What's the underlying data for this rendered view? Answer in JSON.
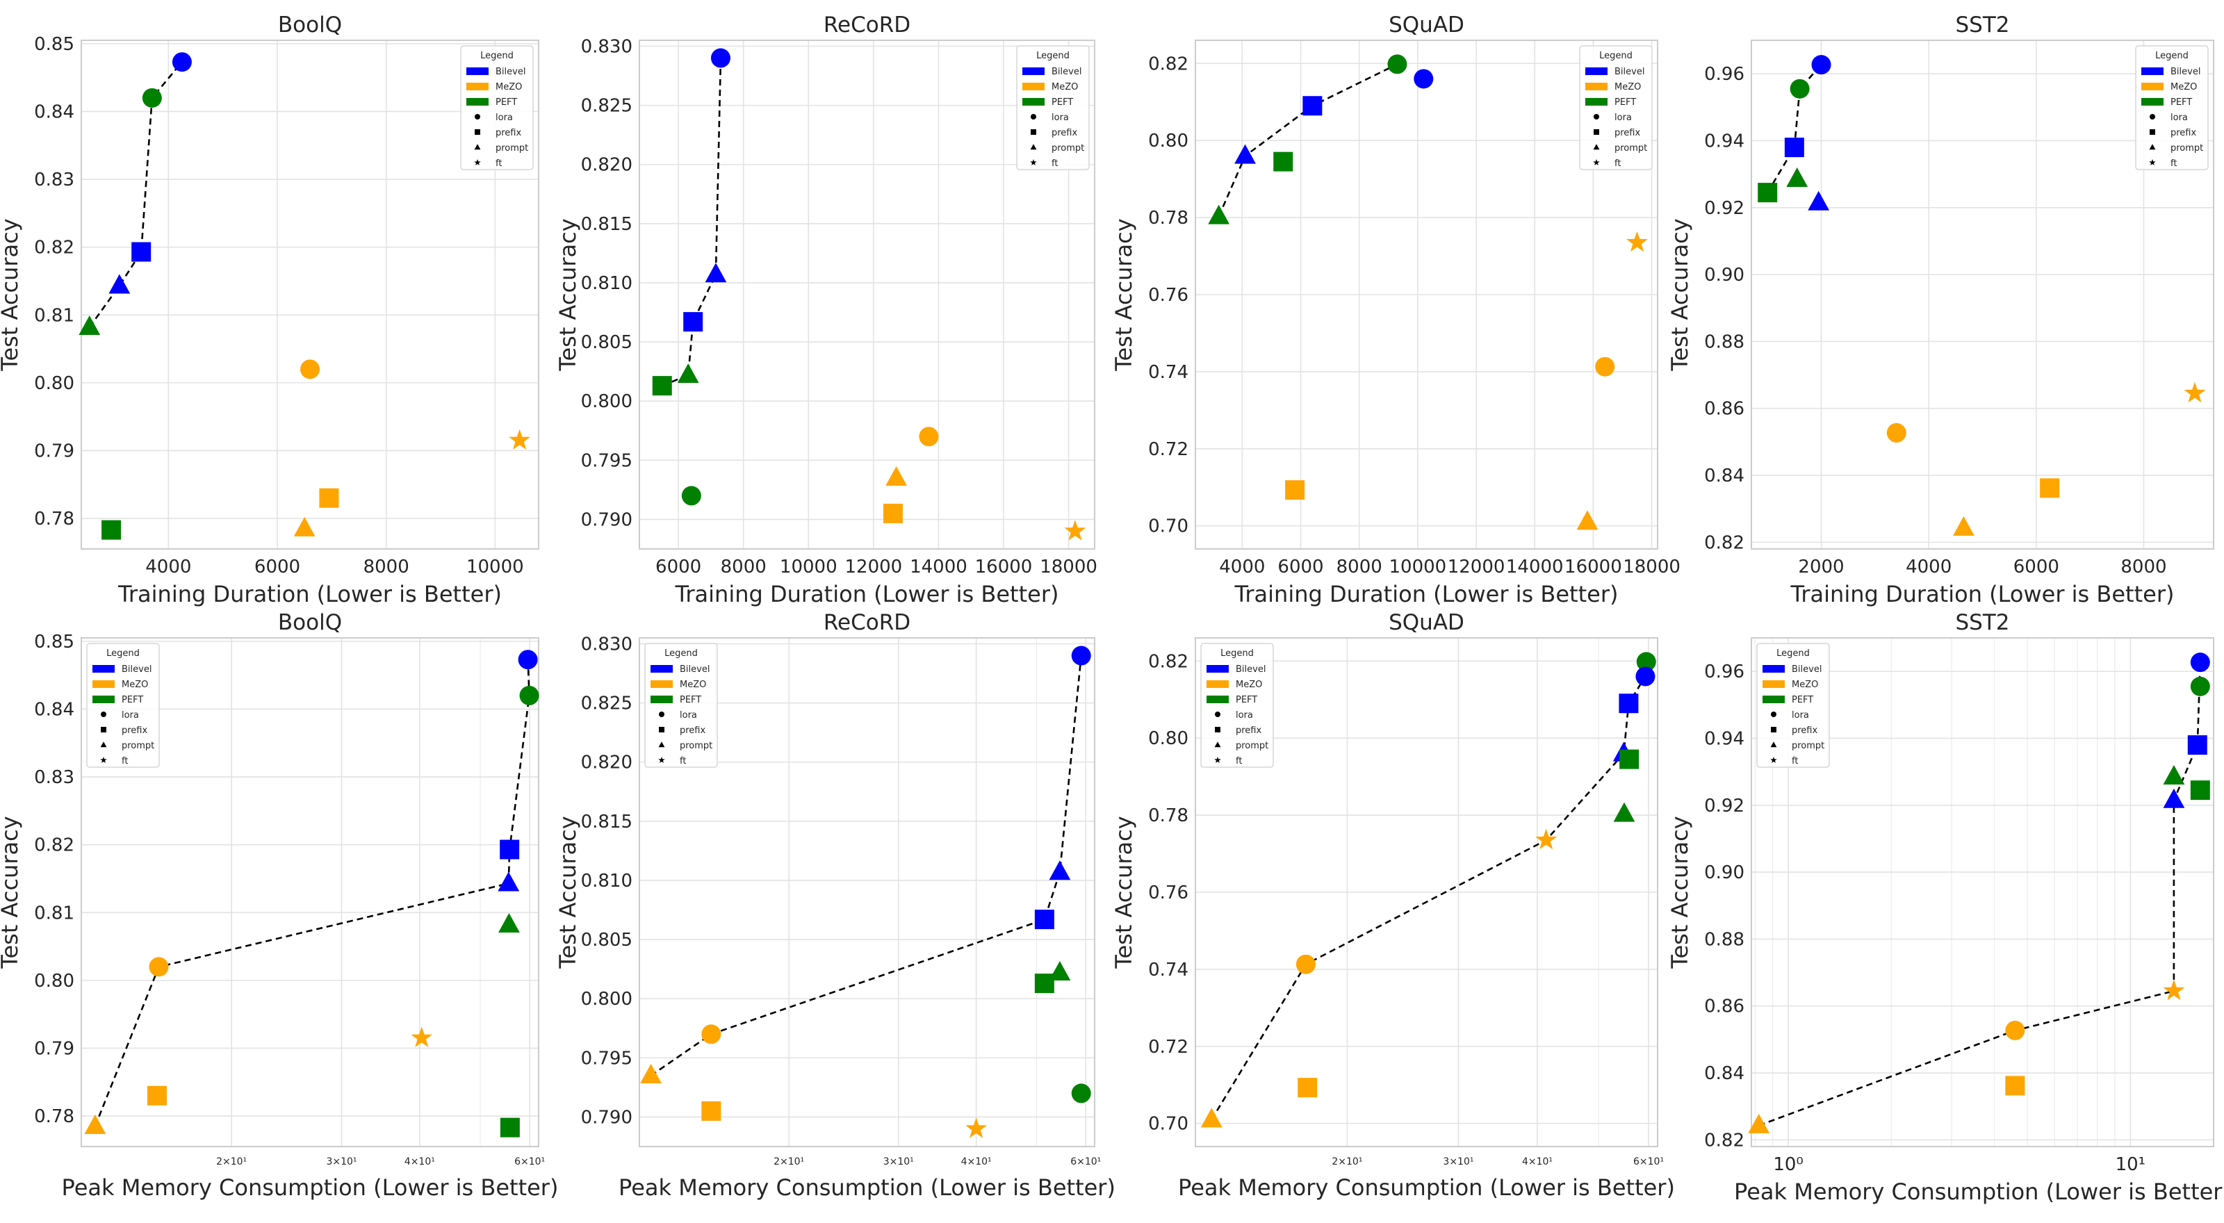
{
  "figure": {
    "rows": 2,
    "cols": 4
  },
  "colors": {
    "Bilevel": "#0000ff",
    "MeZO": "#ffa500",
    "PEFT": "#008000"
  },
  "legend_spec": {
    "title": "Legend",
    "methods": [
      "Bilevel",
      "MeZO",
      "PEFT"
    ],
    "variants": [
      "lora",
      "prefix",
      "prompt",
      "ft"
    ],
    "variant_markers": {
      "lora": "circle",
      "prefix": "square",
      "prompt": "triangle",
      "ft": "star"
    }
  },
  "chart_data": [
    {
      "type": "scatter",
      "title": "BoolQ",
      "xlabel": "Training Duration (Lower is Better)",
      "ylabel": "Test Accuracy",
      "xscale": "linear",
      "xlim": [
        2400,
        10800
      ],
      "ylim": [
        0.7755,
        0.8505
      ],
      "xticks": [
        4000,
        6000,
        8000,
        10000
      ],
      "xtick_labels": [
        "4000",
        "6000",
        "8000",
        "10000"
      ],
      "yticks": [
        0.78,
        0.79,
        0.8,
        0.81,
        0.82,
        0.83,
        0.84,
        0.85
      ],
      "ytick_labels": [
        "0.78",
        "0.79",
        "0.80",
        "0.81",
        "0.82",
        "0.83",
        "0.84",
        "0.85"
      ],
      "legend_position": "top-right",
      "points": [
        {
          "method": "Bilevel",
          "variant": "lora",
          "x": 4250,
          "y": 0.8473
        },
        {
          "method": "PEFT",
          "variant": "lora",
          "x": 3700,
          "y": 0.842
        },
        {
          "method": "Bilevel",
          "variant": "prefix",
          "x": 3500,
          "y": 0.8193
        },
        {
          "method": "Bilevel",
          "variant": "prompt",
          "x": 3100,
          "y": 0.8143
        },
        {
          "method": "PEFT",
          "variant": "prompt",
          "x": 2550,
          "y": 0.8082
        },
        {
          "method": "MeZO",
          "variant": "lora",
          "x": 6600,
          "y": 0.802
        },
        {
          "method": "MeZO",
          "variant": "ft",
          "x": 10450,
          "y": 0.7915
        },
        {
          "method": "MeZO",
          "variant": "prefix",
          "x": 6950,
          "y": 0.783
        },
        {
          "method": "MeZO",
          "variant": "prompt",
          "x": 6500,
          "y": 0.7785
        },
        {
          "method": "PEFT",
          "variant": "prefix",
          "x": 2950,
          "y": 0.7783
        }
      ],
      "frontier": [
        [
          2550,
          0.8082
        ],
        [
          3100,
          0.8143
        ],
        [
          3500,
          0.8193
        ],
        [
          3700,
          0.842
        ],
        [
          4250,
          0.8473
        ]
      ]
    },
    {
      "type": "scatter",
      "title": "ReCoRD",
      "xlabel": "Training Duration (Lower is Better)",
      "ylabel": "Test Accuracy",
      "xscale": "linear",
      "xlim": [
        4800,
        18800
      ],
      "ylim": [
        0.7875,
        0.8305
      ],
      "xticks": [
        6000,
        8000,
        10000,
        12000,
        14000,
        16000,
        18000
      ],
      "xtick_labels": [
        "6000",
        "8000",
        "10000",
        "12000",
        "14000",
        "16000",
        "18000"
      ],
      "yticks": [
        0.79,
        0.795,
        0.8,
        0.805,
        0.81,
        0.815,
        0.82,
        0.825,
        0.83
      ],
      "ytick_labels": [
        "0.790",
        "0.795",
        "0.800",
        "0.805",
        "0.810",
        "0.815",
        "0.820",
        "0.825",
        "0.830"
      ],
      "legend_position": "top-right",
      "points": [
        {
          "method": "Bilevel",
          "variant": "lora",
          "x": 7300,
          "y": 0.829
        },
        {
          "method": "Bilevel",
          "variant": "prompt",
          "x": 7150,
          "y": 0.8107
        },
        {
          "method": "Bilevel",
          "variant": "prefix",
          "x": 6450,
          "y": 0.8067
        },
        {
          "method": "PEFT",
          "variant": "prompt",
          "x": 6300,
          "y": 0.8022
        },
        {
          "method": "PEFT",
          "variant": "prefix",
          "x": 5500,
          "y": 0.8013
        },
        {
          "method": "PEFT",
          "variant": "lora",
          "x": 6400,
          "y": 0.792
        },
        {
          "method": "MeZO",
          "variant": "lora",
          "x": 13700,
          "y": 0.797
        },
        {
          "method": "MeZO",
          "variant": "prompt",
          "x": 12700,
          "y": 0.7935
        },
        {
          "method": "MeZO",
          "variant": "prefix",
          "x": 12600,
          "y": 0.7905
        },
        {
          "method": "MeZO",
          "variant": "ft",
          "x": 18200,
          "y": 0.789
        }
      ],
      "frontier": [
        [
          5500,
          0.8013
        ],
        [
          6300,
          0.8022
        ],
        [
          6450,
          0.8067
        ],
        [
          7150,
          0.8107
        ],
        [
          7300,
          0.829
        ]
      ]
    },
    {
      "type": "scatter",
      "title": "SQuAD",
      "xlabel": "Training Duration (Lower is Better)",
      "ylabel": "Test Accuracy",
      "xscale": "linear",
      "xlim": [
        2400,
        18200
      ],
      "ylim": [
        0.694,
        0.826
      ],
      "xticks": [
        4000,
        6000,
        8000,
        10000,
        12000,
        14000,
        16000,
        18000
      ],
      "xtick_labels": [
        "4000",
        "6000",
        "8000",
        "10000",
        "12000",
        "14000",
        "16000",
        "18000"
      ],
      "yticks": [
        0.7,
        0.72,
        0.74,
        0.76,
        0.78,
        0.8,
        0.82
      ],
      "ytick_labels": [
        "0.70",
        "0.72",
        "0.74",
        "0.76",
        "0.78",
        "0.80",
        "0.82"
      ],
      "legend_position": "top-right",
      "points": [
        {
          "method": "PEFT",
          "variant": "lora",
          "x": 9300,
          "y": 0.8198
        },
        {
          "method": "Bilevel",
          "variant": "lora",
          "x": 10200,
          "y": 0.816
        },
        {
          "method": "Bilevel",
          "variant": "prefix",
          "x": 6400,
          "y": 0.809
        },
        {
          "method": "Bilevel",
          "variant": "prompt",
          "x": 4100,
          "y": 0.796
        },
        {
          "method": "PEFT",
          "variant": "prefix",
          "x": 5400,
          "y": 0.7945
        },
        {
          "method": "PEFT",
          "variant": "prompt",
          "x": 3200,
          "y": 0.7803
        },
        {
          "method": "MeZO",
          "variant": "ft",
          "x": 17500,
          "y": 0.7735
        },
        {
          "method": "MeZO",
          "variant": "lora",
          "x": 16400,
          "y": 0.7413
        },
        {
          "method": "MeZO",
          "variant": "prefix",
          "x": 5800,
          "y": 0.7093
        },
        {
          "method": "MeZO",
          "variant": "prompt",
          "x": 15800,
          "y": 0.701
        }
      ],
      "frontier": [
        [
          3200,
          0.7803
        ],
        [
          4100,
          0.796
        ],
        [
          6400,
          0.809
        ],
        [
          9300,
          0.8198
        ]
      ]
    },
    {
      "type": "scatter",
      "title": "SST2",
      "xlabel": "Training Duration (Lower is Better)",
      "ylabel": "Test Accuracy",
      "xscale": "linear",
      "xlim": [
        700,
        9300
      ],
      "ylim": [
        0.818,
        0.97
      ],
      "xticks": [
        2000,
        4000,
        6000,
        8000
      ],
      "xtick_labels": [
        "2000",
        "4000",
        "6000",
        "8000"
      ],
      "yticks": [
        0.82,
        0.84,
        0.86,
        0.88,
        0.9,
        0.92,
        0.94,
        0.96
      ],
      "ytick_labels": [
        "0.82",
        "0.84",
        "0.86",
        "0.88",
        "0.90",
        "0.92",
        "0.94",
        "0.96"
      ],
      "legend_position": "top-right",
      "points": [
        {
          "method": "Bilevel",
          "variant": "lora",
          "x": 2000,
          "y": 0.9627
        },
        {
          "method": "PEFT",
          "variant": "lora",
          "x": 1600,
          "y": 0.9555
        },
        {
          "method": "Bilevel",
          "variant": "prefix",
          "x": 1500,
          "y": 0.938
        },
        {
          "method": "PEFT",
          "variant": "prompt",
          "x": 1550,
          "y": 0.9285
        },
        {
          "method": "PEFT",
          "variant": "prefix",
          "x": 1000,
          "y": 0.9245
        },
        {
          "method": "Bilevel",
          "variant": "prompt",
          "x": 1950,
          "y": 0.9215
        },
        {
          "method": "MeZO",
          "variant": "ft",
          "x": 8950,
          "y": 0.8645
        },
        {
          "method": "MeZO",
          "variant": "lora",
          "x": 3400,
          "y": 0.8527
        },
        {
          "method": "MeZO",
          "variant": "prefix",
          "x": 6250,
          "y": 0.8362
        },
        {
          "method": "MeZO",
          "variant": "prompt",
          "x": 4650,
          "y": 0.8243
        }
      ],
      "frontier": [
        [
          1000,
          0.9245
        ],
        [
          1500,
          0.938
        ],
        [
          1600,
          0.9555
        ],
        [
          2000,
          0.9627
        ]
      ]
    },
    {
      "type": "scatter",
      "title": "BoolQ",
      "xlabel": "Peak Memory Consumption (Lower is Better)",
      "ylabel": "Test Accuracy",
      "xscale": "log",
      "xlim": [
        11.5,
        62
      ],
      "ylim": [
        0.7755,
        0.8505
      ],
      "xticks": [
        20,
        30,
        40,
        60
      ],
      "xtick_labels": [
        "2×10¹",
        "3×10¹",
        "4×10¹",
        "6×10¹"
      ],
      "yticks": [
        0.78,
        0.79,
        0.8,
        0.81,
        0.82,
        0.83,
        0.84,
        0.85
      ],
      "ytick_labels": [
        "0.78",
        "0.79",
        "0.80",
        "0.81",
        "0.82",
        "0.83",
        "0.84",
        "0.85"
      ],
      "legend_position": "top-left",
      "points": [
        {
          "method": "Bilevel",
          "variant": "lora",
          "x": 59.6,
          "y": 0.8473
        },
        {
          "method": "PEFT",
          "variant": "lora",
          "x": 59.9,
          "y": 0.842
        },
        {
          "method": "Bilevel",
          "variant": "prefix",
          "x": 55.7,
          "y": 0.8193
        },
        {
          "method": "Bilevel",
          "variant": "prompt",
          "x": 55.5,
          "y": 0.8143
        },
        {
          "method": "PEFT",
          "variant": "prompt",
          "x": 55.6,
          "y": 0.8082
        },
        {
          "method": "MeZO",
          "variant": "lora",
          "x": 15.3,
          "y": 0.802
        },
        {
          "method": "MeZO",
          "variant": "ft",
          "x": 40.3,
          "y": 0.7915
        },
        {
          "method": "MeZO",
          "variant": "prefix",
          "x": 15.2,
          "y": 0.783
        },
        {
          "method": "MeZO",
          "variant": "prompt",
          "x": 12.1,
          "y": 0.7785
        },
        {
          "method": "PEFT",
          "variant": "prefix",
          "x": 55.8,
          "y": 0.7783
        }
      ],
      "frontier": [
        [
          12.1,
          0.7785
        ],
        [
          15.3,
          0.802
        ],
        [
          55.5,
          0.8143
        ],
        [
          55.7,
          0.8193
        ],
        [
          59.9,
          0.842
        ],
        [
          59.6,
          0.8473
        ]
      ]
    },
    {
      "type": "scatter",
      "title": "ReCoRD",
      "xlabel": "Peak Memory Consumption (Lower is Better)",
      "ylabel": "Test Accuracy",
      "xscale": "log",
      "xlim": [
        11.5,
        62
      ],
      "ylim": [
        0.7875,
        0.8305
      ],
      "xticks": [
        20,
        30,
        40,
        60
      ],
      "xtick_labels": [
        "2×10¹",
        "3×10¹",
        "4×10¹",
        "6×10¹"
      ],
      "yticks": [
        0.79,
        0.795,
        0.8,
        0.805,
        0.81,
        0.815,
        0.82,
        0.825,
        0.83
      ],
      "ytick_labels": [
        "0.790",
        "0.795",
        "0.800",
        "0.805",
        "0.810",
        "0.815",
        "0.820",
        "0.825",
        "0.830"
      ],
      "legend_position": "top-left",
      "points": [
        {
          "method": "Bilevel",
          "variant": "lora",
          "x": 59.0,
          "y": 0.829
        },
        {
          "method": "Bilevel",
          "variant": "prompt",
          "x": 54.5,
          "y": 0.8107
        },
        {
          "method": "Bilevel",
          "variant": "prefix",
          "x": 51.5,
          "y": 0.8067
        },
        {
          "method": "PEFT",
          "variant": "prompt",
          "x": 54.5,
          "y": 0.8022
        },
        {
          "method": "PEFT",
          "variant": "prefix",
          "x": 51.5,
          "y": 0.8013
        },
        {
          "method": "PEFT",
          "variant": "lora",
          "x": 59.0,
          "y": 0.792
        },
        {
          "method": "MeZO",
          "variant": "lora",
          "x": 15.0,
          "y": 0.797
        },
        {
          "method": "MeZO",
          "variant": "prompt",
          "x": 12.0,
          "y": 0.7935
        },
        {
          "method": "MeZO",
          "variant": "prefix",
          "x": 15.0,
          "y": 0.7905
        },
        {
          "method": "MeZO",
          "variant": "ft",
          "x": 40.0,
          "y": 0.789
        }
      ],
      "frontier": [
        [
          12.0,
          0.7935
        ],
        [
          15.0,
          0.797
        ],
        [
          51.5,
          0.8067
        ],
        [
          54.5,
          0.8107
        ],
        [
          59.0,
          0.829
        ]
      ]
    },
    {
      "type": "scatter",
      "title": "SQuAD",
      "xlabel": "Peak Memory Consumption (Lower is Better)",
      "ylabel": "Test Accuracy",
      "xscale": "log",
      "xlim": [
        11.5,
        62
      ],
      "ylim": [
        0.694,
        0.826
      ],
      "xticks": [
        20,
        30,
        40,
        60
      ],
      "xtick_labels": [
        "2×10¹",
        "3×10¹",
        "4×10¹",
        "6×10¹"
      ],
      "yticks": [
        0.7,
        0.72,
        0.74,
        0.76,
        0.78,
        0.8,
        0.82
      ],
      "ytick_labels": [
        "0.70",
        "0.72",
        "0.74",
        "0.76",
        "0.78",
        "0.80",
        "0.82"
      ],
      "legend_position": "top-left",
      "points": [
        {
          "method": "PEFT",
          "variant": "lora",
          "x": 59.5,
          "y": 0.8198
        },
        {
          "method": "Bilevel",
          "variant": "lora",
          "x": 59.3,
          "y": 0.816
        },
        {
          "method": "Bilevel",
          "variant": "prefix",
          "x": 55.8,
          "y": 0.809
        },
        {
          "method": "Bilevel",
          "variant": "prompt",
          "x": 54.8,
          "y": 0.796
        },
        {
          "method": "PEFT",
          "variant": "prefix",
          "x": 55.9,
          "y": 0.7945
        },
        {
          "method": "PEFT",
          "variant": "prompt",
          "x": 54.9,
          "y": 0.7803
        },
        {
          "method": "MeZO",
          "variant": "ft",
          "x": 41.3,
          "y": 0.7735
        },
        {
          "method": "MeZO",
          "variant": "lora",
          "x": 17.2,
          "y": 0.7413
        },
        {
          "method": "MeZO",
          "variant": "prefix",
          "x": 17.3,
          "y": 0.7093
        },
        {
          "method": "MeZO",
          "variant": "prompt",
          "x": 12.2,
          "y": 0.701
        }
      ],
      "frontier": [
        [
          12.2,
          0.701
        ],
        [
          17.2,
          0.7413
        ],
        [
          41.3,
          0.7735
        ],
        [
          54.8,
          0.796
        ],
        [
          55.8,
          0.809
        ],
        [
          59.3,
          0.816
        ],
        [
          59.5,
          0.8198
        ]
      ]
    },
    {
      "type": "scatter",
      "title": "SST2",
      "xlabel": "Peak Memory Consumption (Lower is Better)",
      "ylabel": "Test Accuracy",
      "xscale": "log",
      "xlim": [
        0.78,
        17.5
      ],
      "ylim": [
        0.818,
        0.97
      ],
      "xticks": [
        1,
        10
      ],
      "xtick_labels": [
        "10⁰",
        "10¹"
      ],
      "yticks": [
        0.82,
        0.84,
        0.86,
        0.88,
        0.9,
        0.92,
        0.94,
        0.96
      ],
      "ytick_labels": [
        "0.82",
        "0.84",
        "0.86",
        "0.88",
        "0.90",
        "0.92",
        "0.94",
        "0.96"
      ],
      "legend_position": "top-left",
      "points": [
        {
          "method": "Bilevel",
          "variant": "lora",
          "x": 16.0,
          "y": 0.9627
        },
        {
          "method": "PEFT",
          "variant": "lora",
          "x": 16.0,
          "y": 0.9555
        },
        {
          "method": "Bilevel",
          "variant": "prefix",
          "x": 15.7,
          "y": 0.938
        },
        {
          "method": "PEFT",
          "variant": "prompt",
          "x": 13.4,
          "y": 0.9285
        },
        {
          "method": "PEFT",
          "variant": "prefix",
          "x": 16.0,
          "y": 0.9245
        },
        {
          "method": "Bilevel",
          "variant": "prompt",
          "x": 13.4,
          "y": 0.9215
        },
        {
          "method": "MeZO",
          "variant": "ft",
          "x": 13.4,
          "y": 0.8645
        },
        {
          "method": "MeZO",
          "variant": "lora",
          "x": 4.6,
          "y": 0.8527
        },
        {
          "method": "MeZO",
          "variant": "prefix",
          "x": 4.6,
          "y": 0.8362
        },
        {
          "method": "MeZO",
          "variant": "prompt",
          "x": 0.82,
          "y": 0.8243
        }
      ],
      "frontier": [
        [
          0.82,
          0.8243
        ],
        [
          4.6,
          0.8527
        ],
        [
          13.4,
          0.8645
        ],
        [
          13.4,
          0.9215
        ],
        [
          15.7,
          0.938
        ],
        [
          16.0,
          0.9627
        ]
      ]
    }
  ]
}
